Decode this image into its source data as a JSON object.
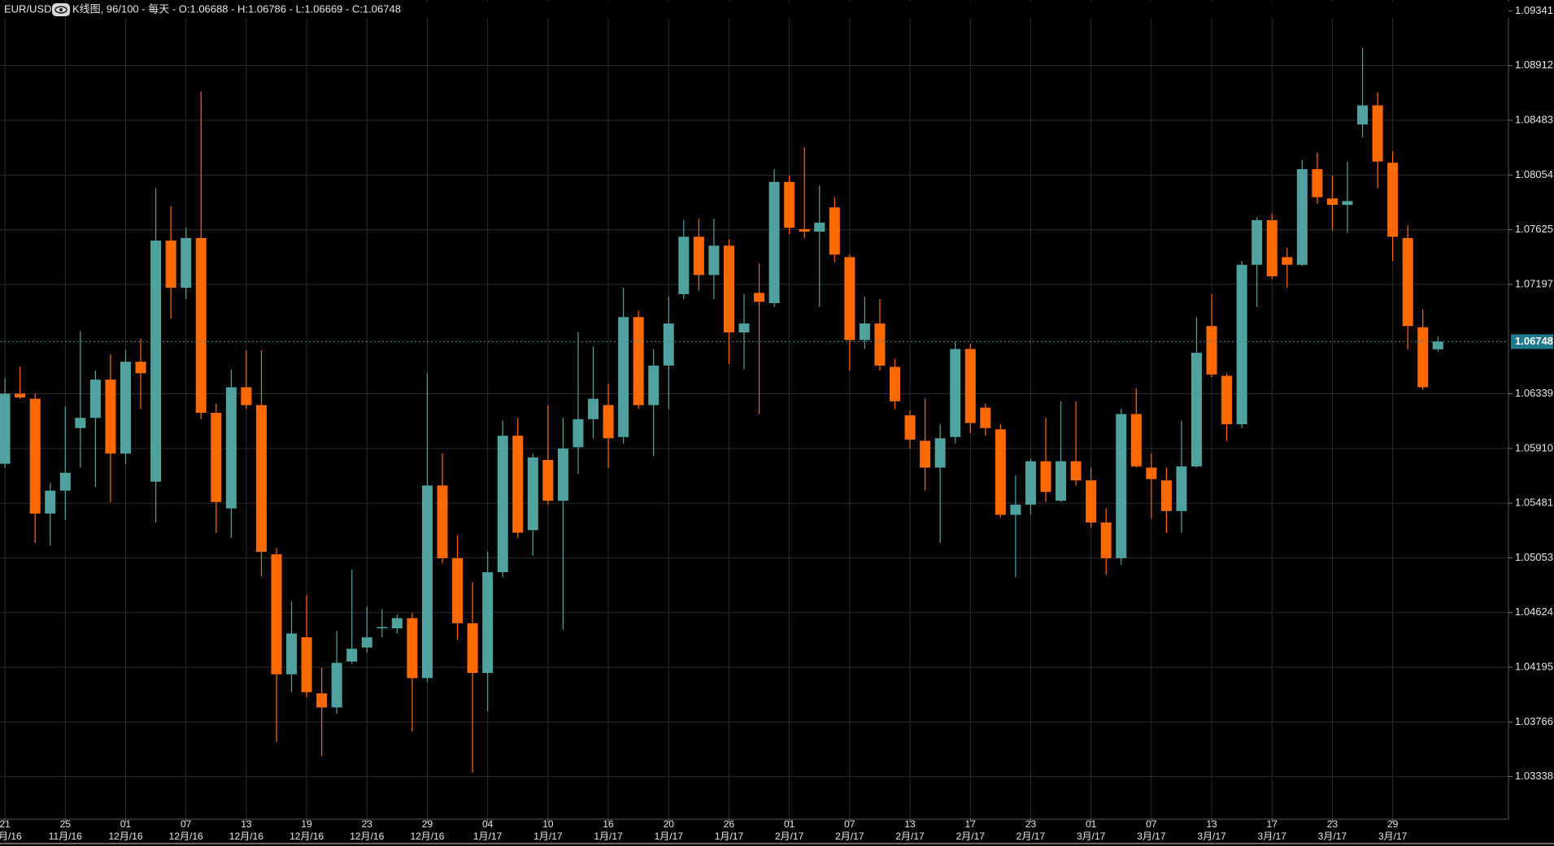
{
  "chart_data": {
    "type": "candlestick",
    "symbol": "EUR/USD",
    "title": "K线图, 96/100 - 每天 - O:1.06688 - H:1.06786 - L:1.06669 - C:1.06748",
    "up_color": "#4fa29e",
    "down_color": "#ff6a00",
    "grid": true,
    "last_price": 1.06748,
    "ylim": [
      1.03004,
      1.09426
    ],
    "yticks": [
      1.09341,
      1.08912,
      1.08483,
      1.08054,
      1.07625,
      1.07197,
      1.06339,
      {
        "value": 1.0591,
        "label": "1.05910"
      },
      1.05481,
      1.05053,
      1.04624,
      1.04195,
      1.03766,
      1.03338
    ],
    "categories": [
      {
        "day": "21",
        "month": "11月/16"
      },
      null,
      null,
      null,
      {
        "day": "25",
        "month": "11月/16"
      },
      null,
      null,
      null,
      {
        "day": "01",
        "month": "12月/16"
      },
      null,
      null,
      null,
      {
        "day": "07",
        "month": "12月/16"
      },
      null,
      null,
      null,
      {
        "day": "13",
        "month": "12月/16"
      },
      null,
      null,
      null,
      {
        "day": "19",
        "month": "12月/16"
      },
      null,
      null,
      null,
      {
        "day": "23",
        "month": "12月/16"
      },
      null,
      null,
      null,
      {
        "day": "29",
        "month": "12月/16"
      },
      null,
      null,
      null,
      {
        "day": "04",
        "month": "1月/17"
      },
      null,
      null,
      null,
      {
        "day": "10",
        "month": "1月/17"
      },
      null,
      null,
      null,
      {
        "day": "16",
        "month": "1月/17"
      },
      null,
      null,
      null,
      {
        "day": "20",
        "month": "1月/17"
      },
      null,
      null,
      null,
      {
        "day": "26",
        "month": "1月/17"
      },
      null,
      null,
      null,
      {
        "day": "01",
        "month": "2月/17"
      },
      null,
      null,
      null,
      {
        "day": "07",
        "month": "2月/17"
      },
      null,
      null,
      null,
      {
        "day": "13",
        "month": "2月/17"
      },
      null,
      null,
      null,
      {
        "day": "17",
        "month": "2月/17"
      },
      null,
      null,
      null,
      {
        "day": "23",
        "month": "2月/17"
      },
      null,
      null,
      null,
      {
        "day": "01",
        "month": "3月/17"
      },
      null,
      null,
      null,
      {
        "day": "07",
        "month": "3月/17"
      },
      null,
      null,
      null,
      {
        "day": "13",
        "month": "3月/17"
      },
      null,
      null,
      null,
      {
        "day": "17",
        "month": "3月/17"
      },
      null,
      null,
      null,
      {
        "day": "23",
        "month": "3月/17"
      },
      null,
      null,
      null,
      {
        "day": "29",
        "month": "3月/17"
      },
      null,
      null,
      null
    ],
    "open": [
      1.0579,
      1.0634,
      1.063,
      1.054,
      1.0558,
      1.0607,
      1.0615,
      1.0645,
      1.0587,
      1.0659,
      1.0565,
      1.0754,
      1.0717,
      1.0756,
      1.0619,
      1.0544,
      1.0639,
      1.0625,
      1.0508,
      1.0414,
      1.0443,
      1.0399,
      1.0388,
      1.0424,
      1.0435,
      1.045,
      1.045,
      1.0458,
      1.0411,
      1.0562,
      1.0505,
      1.0454,
      1.0415,
      1.0494,
      1.0601,
      1.0527,
      1.0582,
      1.055,
      1.0592,
      1.0614,
      1.0625,
      1.06,
      1.0694,
      1.0625,
      1.0656,
      1.0712,
      1.0757,
      1.0727,
      1.075,
      1.0682,
      1.0713,
      1.0705,
      1.08,
      1.0763,
      1.0761,
      1.078,
      1.0741,
      1.0676,
      1.0689,
      1.0655,
      1.0617,
      1.0597,
      1.0576,
      1.06,
      1.0669,
      1.0623,
      1.0606,
      1.0539,
      1.0547,
      1.0581,
      1.055,
      1.0581,
      1.0566,
      1.0533,
      1.0505,
      1.0618,
      1.0576,
      1.0566,
      1.0542,
      1.0577,
      1.0687,
      1.0648,
      1.061,
      1.0735,
      1.077,
      1.0741,
      1.0735,
      1.081,
      1.0787,
      1.0782,
      1.0845,
      1.086,
      1.0815,
      1.0756,
      1.0686,
      1.06688
    ],
    "high": [
      1.0646,
      1.0655,
      1.0634,
      1.0564,
      1.0624,
      1.0683,
      1.0652,
      1.0665,
      1.0668,
      1.0677,
      1.0795,
      1.0781,
      1.0764,
      1.0871,
      1.0626,
      1.0653,
      1.0668,
      1.0668,
      1.0513,
      1.0471,
      1.0476,
      1.0419,
      1.0448,
      1.0496,
      1.0467,
      1.0465,
      1.0461,
      1.0462,
      1.065,
      1.0587,
      1.0523,
      1.0486,
      1.051,
      1.0613,
      1.0615,
      1.0587,
      1.0625,
      1.0615,
      1.0682,
      1.0671,
      1.0642,
      1.0717,
      1.0699,
      1.0669,
      1.071,
      1.077,
      1.0771,
      1.0771,
      1.0755,
      1.0712,
      1.0736,
      1.081,
      1.0805,
      1.0827,
      1.0797,
      1.0788,
      1.0743,
      1.071,
      1.0708,
      1.0661,
      1.0621,
      1.063,
      1.061,
      1.0675,
      1.0673,
      1.0626,
      1.061,
      1.057,
      1.0583,
      1.0615,
      1.0628,
      1.0628,
      1.0576,
      1.0544,
      1.0622,
      1.0638,
      1.0587,
      1.0576,
      1.0613,
      1.0694,
      1.0712,
      1.065,
      1.0738,
      1.0772,
      1.0775,
      1.0748,
      1.0817,
      1.0823,
      1.0805,
      1.0816,
      1.0905,
      1.087,
      1.0824,
      1.0766,
      1.07,
      1.06786
    ],
    "low": [
      1.0576,
      1.063,
      1.0517,
      1.0515,
      1.0535,
      1.0576,
      1.0561,
      1.0549,
      1.0579,
      1.0622,
      1.0533,
      1.0693,
      1.0708,
      1.0614,
      1.0525,
      1.0521,
      1.0622,
      1.0491,
      1.0361,
      1.04,
      1.0396,
      1.035,
      1.0383,
      1.0422,
      1.0431,
      1.0443,
      1.0446,
      1.0369,
      1.0408,
      1.0501,
      1.0441,
      1.0337,
      1.0385,
      1.049,
      1.0521,
      1.0507,
      1.0547,
      1.0449,
      1.0571,
      1.0599,
      1.0576,
      1.0595,
      1.0622,
      1.0585,
      1.0622,
      1.0708,
      1.0715,
      1.0708,
      1.0657,
      1.0653,
      1.0618,
      1.0702,
      1.0759,
      1.0756,
      1.0702,
      1.0737,
      1.0652,
      1.0669,
      1.0652,
      1.0622,
      1.0591,
      1.0558,
      1.0517,
      1.0595,
      1.0603,
      1.0601,
      1.0537,
      1.049,
      1.0539,
      1.0549,
      1.0549,
      1.0562,
      1.0529,
      1.0492,
      1.05,
      1.0576,
      1.0536,
      1.0525,
      1.0525,
      1.0576,
      1.0647,
      1.0597,
      1.0607,
      1.0702,
      1.0724,
      1.0717,
      1.0734,
      1.0783,
      1.0762,
      1.076,
      1.0835,
      1.0795,
      1.0738,
      1.0669,
      1.0637,
      1.06669
    ],
    "close": [
      1.0634,
      1.0631,
      1.054,
      1.0558,
      1.0572,
      1.0615,
      1.0645,
      1.0587,
      1.0659,
      1.065,
      1.0754,
      1.0717,
      1.0756,
      1.0619,
      1.0549,
      1.0639,
      1.0625,
      1.051,
      1.0414,
      1.0446,
      1.04,
      1.0388,
      1.0423,
      1.0434,
      1.0443,
      1.0451,
      1.0458,
      1.0411,
      1.0562,
      1.0505,
      1.0454,
      1.0415,
      1.0494,
      1.0601,
      1.0525,
      1.0584,
      1.055,
      1.0591,
      1.0614,
      1.063,
      1.0599,
      1.0694,
      1.0625,
      1.0656,
      1.0689,
      1.0757,
      1.0727,
      1.075,
      1.0682,
      1.0689,
      1.0706,
      1.08,
      1.0764,
      1.0761,
      1.0768,
      1.0743,
      1.0676,
      1.0689,
      1.0656,
      1.0628,
      1.0598,
      1.0576,
      1.0599,
      1.0669,
      1.0611,
      1.0607,
      1.0539,
      1.0547,
      1.0581,
      1.0557,
      1.0581,
      1.0566,
      1.0533,
      1.0505,
      1.0618,
      1.0577,
      1.0567,
      1.0542,
      1.0577,
      1.0666,
      1.0649,
      1.061,
      1.0735,
      1.077,
      1.0726,
      1.0735,
      1.081,
      1.0788,
      1.0782,
      1.0785,
      1.086,
      1.0816,
      1.0757,
      1.0687,
      1.0639,
      1.06748
    ]
  }
}
